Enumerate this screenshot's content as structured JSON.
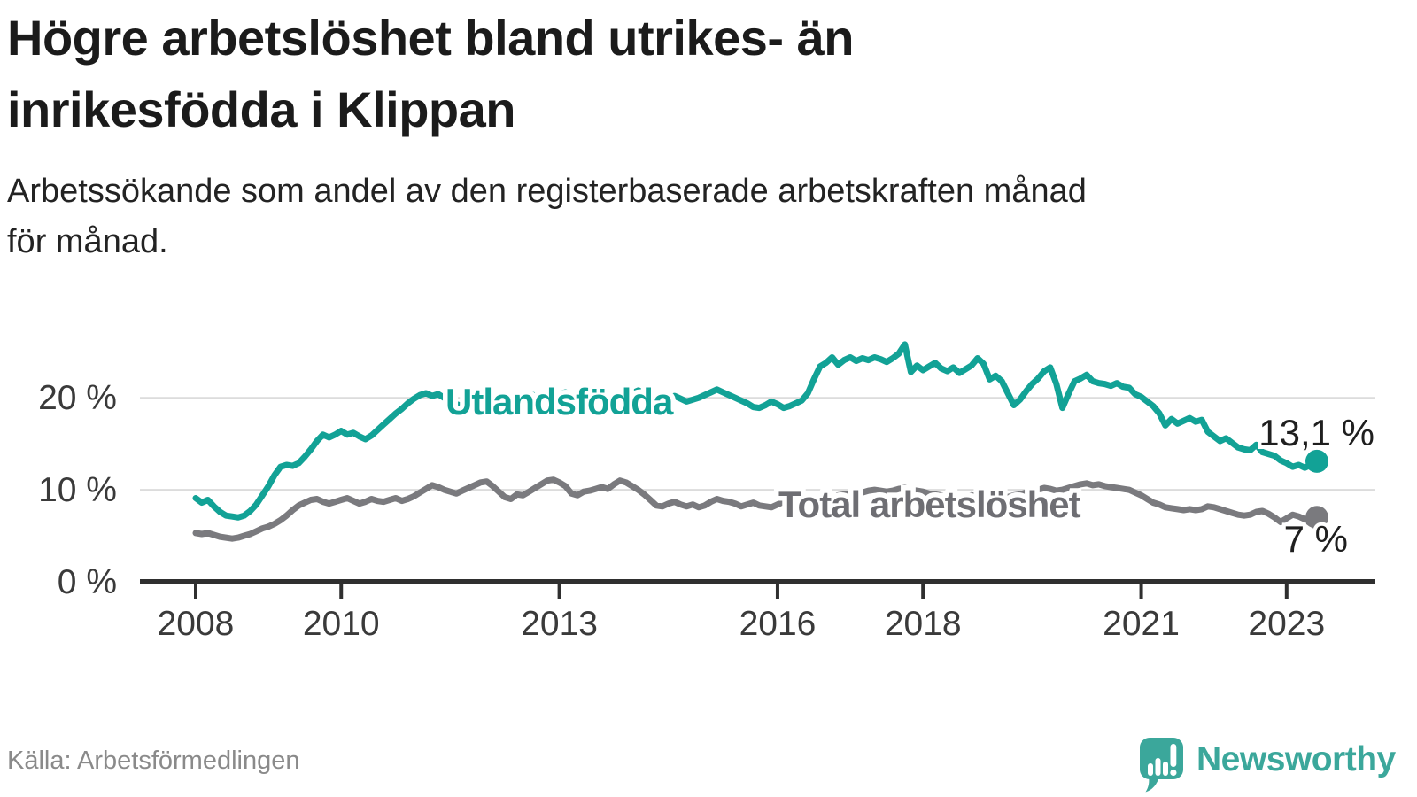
{
  "title": {
    "line1": "Högre arbetslöshet bland utrikes- än",
    "line2": "inrikesfödda i Klippan"
  },
  "subtitle": {
    "line1": "Arbetssökande som andel av den registerbaserade arbetskraften månad",
    "line2": "för månad."
  },
  "source": {
    "text": "Källa: Arbetsförmedlingen"
  },
  "logo": {
    "text": "Newsworthy",
    "color": "#3ba79b"
  },
  "colors": {
    "accent_teal": "#12a296",
    "series_gray": "#7a7a7e",
    "gray_label": "#6e6e73",
    "axis": "#2f2f2f",
    "grid": "#dcdcdc",
    "tick_text": "#3a3a3a",
    "end_label_text": "#1f1f1f"
  },
  "chart_data": {
    "type": "line",
    "title": "Högre arbetslöshet bland utrikes- än inrikesfödda i Klippan",
    "ylabel": "Arbetssökande som andel av den registerbaserade arbetskraften",
    "x_start_year": 2008,
    "x_step_months": 1,
    "x_end_label": "mitten av 2023",
    "ylim": [
      0,
      26.5
    ],
    "grid": "horizontal",
    "y_ticks": [
      {
        "value": 0,
        "label": "0 %"
      },
      {
        "value": 10,
        "label": "10 %"
      },
      {
        "value": 20,
        "label": "20 %"
      }
    ],
    "x_ticks": [
      {
        "value": 2008,
        "label": "2008"
      },
      {
        "value": 2010,
        "label": "2010"
      },
      {
        "value": 2013,
        "label": "2013"
      },
      {
        "value": 2016,
        "label": "2016"
      },
      {
        "value": 2018,
        "label": "2018"
      },
      {
        "value": 2021,
        "label": "2021"
      },
      {
        "value": 2023,
        "label": "2023"
      }
    ],
    "series": [
      {
        "id": "utlandsfodda",
        "name": "Utlandsfödda",
        "color": "#12a296",
        "end_label": "13,1 %",
        "end_value": 13.1,
        "values": [
          9.1,
          8.6,
          8.9,
          8.2,
          7.6,
          7.2,
          7.1,
          7.0,
          7.2,
          7.7,
          8.4,
          9.4,
          10.4,
          11.6,
          12.5,
          12.7,
          12.6,
          12.9,
          13.6,
          14.4,
          15.3,
          16.0,
          15.7,
          16.0,
          16.4,
          16.0,
          16.2,
          15.8,
          15.5,
          15.9,
          16.5,
          17.1,
          17.7,
          18.3,
          18.8,
          19.4,
          19.9,
          20.3,
          20.5,
          20.2,
          20.4,
          20.0,
          19.6,
          19.3,
          19.1,
          19.3,
          19.0,
          19.2,
          19.5,
          19.8,
          20.1,
          19.9,
          19.7,
          20.0,
          20.3,
          20.5,
          20.2,
          20.0,
          19.8,
          20.1,
          20.4,
          20.6,
          20.3,
          20.0,
          19.8,
          20.1,
          20.4,
          20.2,
          19.9,
          20.2,
          20.5,
          20.7,
          20.5,
          20.8,
          20.6,
          20.3,
          20.0,
          19.7,
          19.9,
          20.2,
          19.9,
          19.6,
          19.8,
          20.0,
          20.3,
          20.6,
          20.9,
          20.6,
          20.3,
          20.0,
          19.7,
          19.4,
          19.0,
          18.9,
          19.2,
          19.6,
          19.3,
          18.9,
          19.1,
          19.4,
          19.7,
          20.5,
          22.0,
          23.4,
          23.8,
          24.4,
          23.6,
          24.1,
          24.4,
          24.0,
          24.3,
          24.1,
          24.4,
          24.2,
          23.9,
          24.3,
          24.8,
          25.8,
          22.8,
          23.5,
          23.0,
          23.4,
          23.8,
          23.2,
          22.9,
          23.3,
          22.7,
          23.1,
          23.5,
          24.3,
          23.7,
          22.0,
          22.4,
          21.8,
          20.5,
          19.2,
          19.8,
          20.7,
          21.5,
          22.1,
          22.9,
          23.3,
          21.5,
          18.9,
          20.4,
          21.8,
          22.1,
          22.5,
          21.8,
          21.6,
          21.5,
          21.3,
          21.6,
          21.2,
          21.1,
          20.4,
          20.1,
          19.6,
          19.1,
          18.3,
          17.0,
          17.7,
          17.2,
          17.5,
          17.8,
          17.4,
          17.6,
          16.3,
          15.8,
          15.3,
          15.6,
          15.1,
          14.6,
          14.4,
          14.3,
          14.9,
          14.1,
          13.9,
          13.7,
          13.2,
          12.9,
          12.5,
          12.7,
          12.4,
          12.7,
          13.1
        ]
      },
      {
        "id": "total",
        "name": "Total arbetslöshet",
        "color": "#7a7a7e",
        "end_label": "7 %",
        "end_value": 7.0,
        "values": [
          5.3,
          5.2,
          5.3,
          5.1,
          4.9,
          4.8,
          4.7,
          4.8,
          5.0,
          5.2,
          5.5,
          5.8,
          6.0,
          6.3,
          6.7,
          7.2,
          7.8,
          8.3,
          8.6,
          8.9,
          9.0,
          8.7,
          8.5,
          8.7,
          8.9,
          9.1,
          8.8,
          8.5,
          8.7,
          9.0,
          8.8,
          8.7,
          8.9,
          9.1,
          8.8,
          9.0,
          9.3,
          9.7,
          10.1,
          10.5,
          10.3,
          10.0,
          9.8,
          9.6,
          9.9,
          10.2,
          10.5,
          10.8,
          10.9,
          10.4,
          9.8,
          9.2,
          9.0,
          9.5,
          9.4,
          9.8,
          10.2,
          10.6,
          11.0,
          11.1,
          10.8,
          10.4,
          9.6,
          9.4,
          9.8,
          9.9,
          10.1,
          10.3,
          10.1,
          10.6,
          11.0,
          10.8,
          10.4,
          10.0,
          9.5,
          8.9,
          8.3,
          8.2,
          8.5,
          8.7,
          8.4,
          8.2,
          8.4,
          8.1,
          8.3,
          8.7,
          9.0,
          8.8,
          8.7,
          8.5,
          8.2,
          8.4,
          8.6,
          8.3,
          8.2,
          8.1,
          8.4,
          8.7,
          8.6,
          8.5,
          8.7,
          8.9,
          9.0,
          9.2,
          9.3,
          9.2,
          9.4,
          9.5,
          9.6,
          9.8,
          9.7,
          9.9,
          10.0,
          9.9,
          9.8,
          9.9,
          10.1,
          10.2,
          10.0,
          9.9,
          9.8,
          9.6,
          9.5,
          9.4,
          9.2,
          9.3,
          9.1,
          9.2,
          9.4,
          9.3,
          9.1,
          9.0,
          9.1,
          9.3,
          9.2,
          9.4,
          9.5,
          9.7,
          9.9,
          10.0,
          10.2,
          10.1,
          9.9,
          10.0,
          10.2,
          10.4,
          10.6,
          10.7,
          10.5,
          10.6,
          10.4,
          10.3,
          10.2,
          10.1,
          10.0,
          9.7,
          9.4,
          9.0,
          8.6,
          8.4,
          8.1,
          8.0,
          7.9,
          7.8,
          7.9,
          7.8,
          7.9,
          8.2,
          8.1,
          7.9,
          7.7,
          7.5,
          7.3,
          7.2,
          7.3,
          7.6,
          7.7,
          7.4,
          7.0,
          6.5,
          6.9,
          7.3,
          7.1,
          6.8,
          6.3,
          7.0
        ]
      }
    ]
  }
}
